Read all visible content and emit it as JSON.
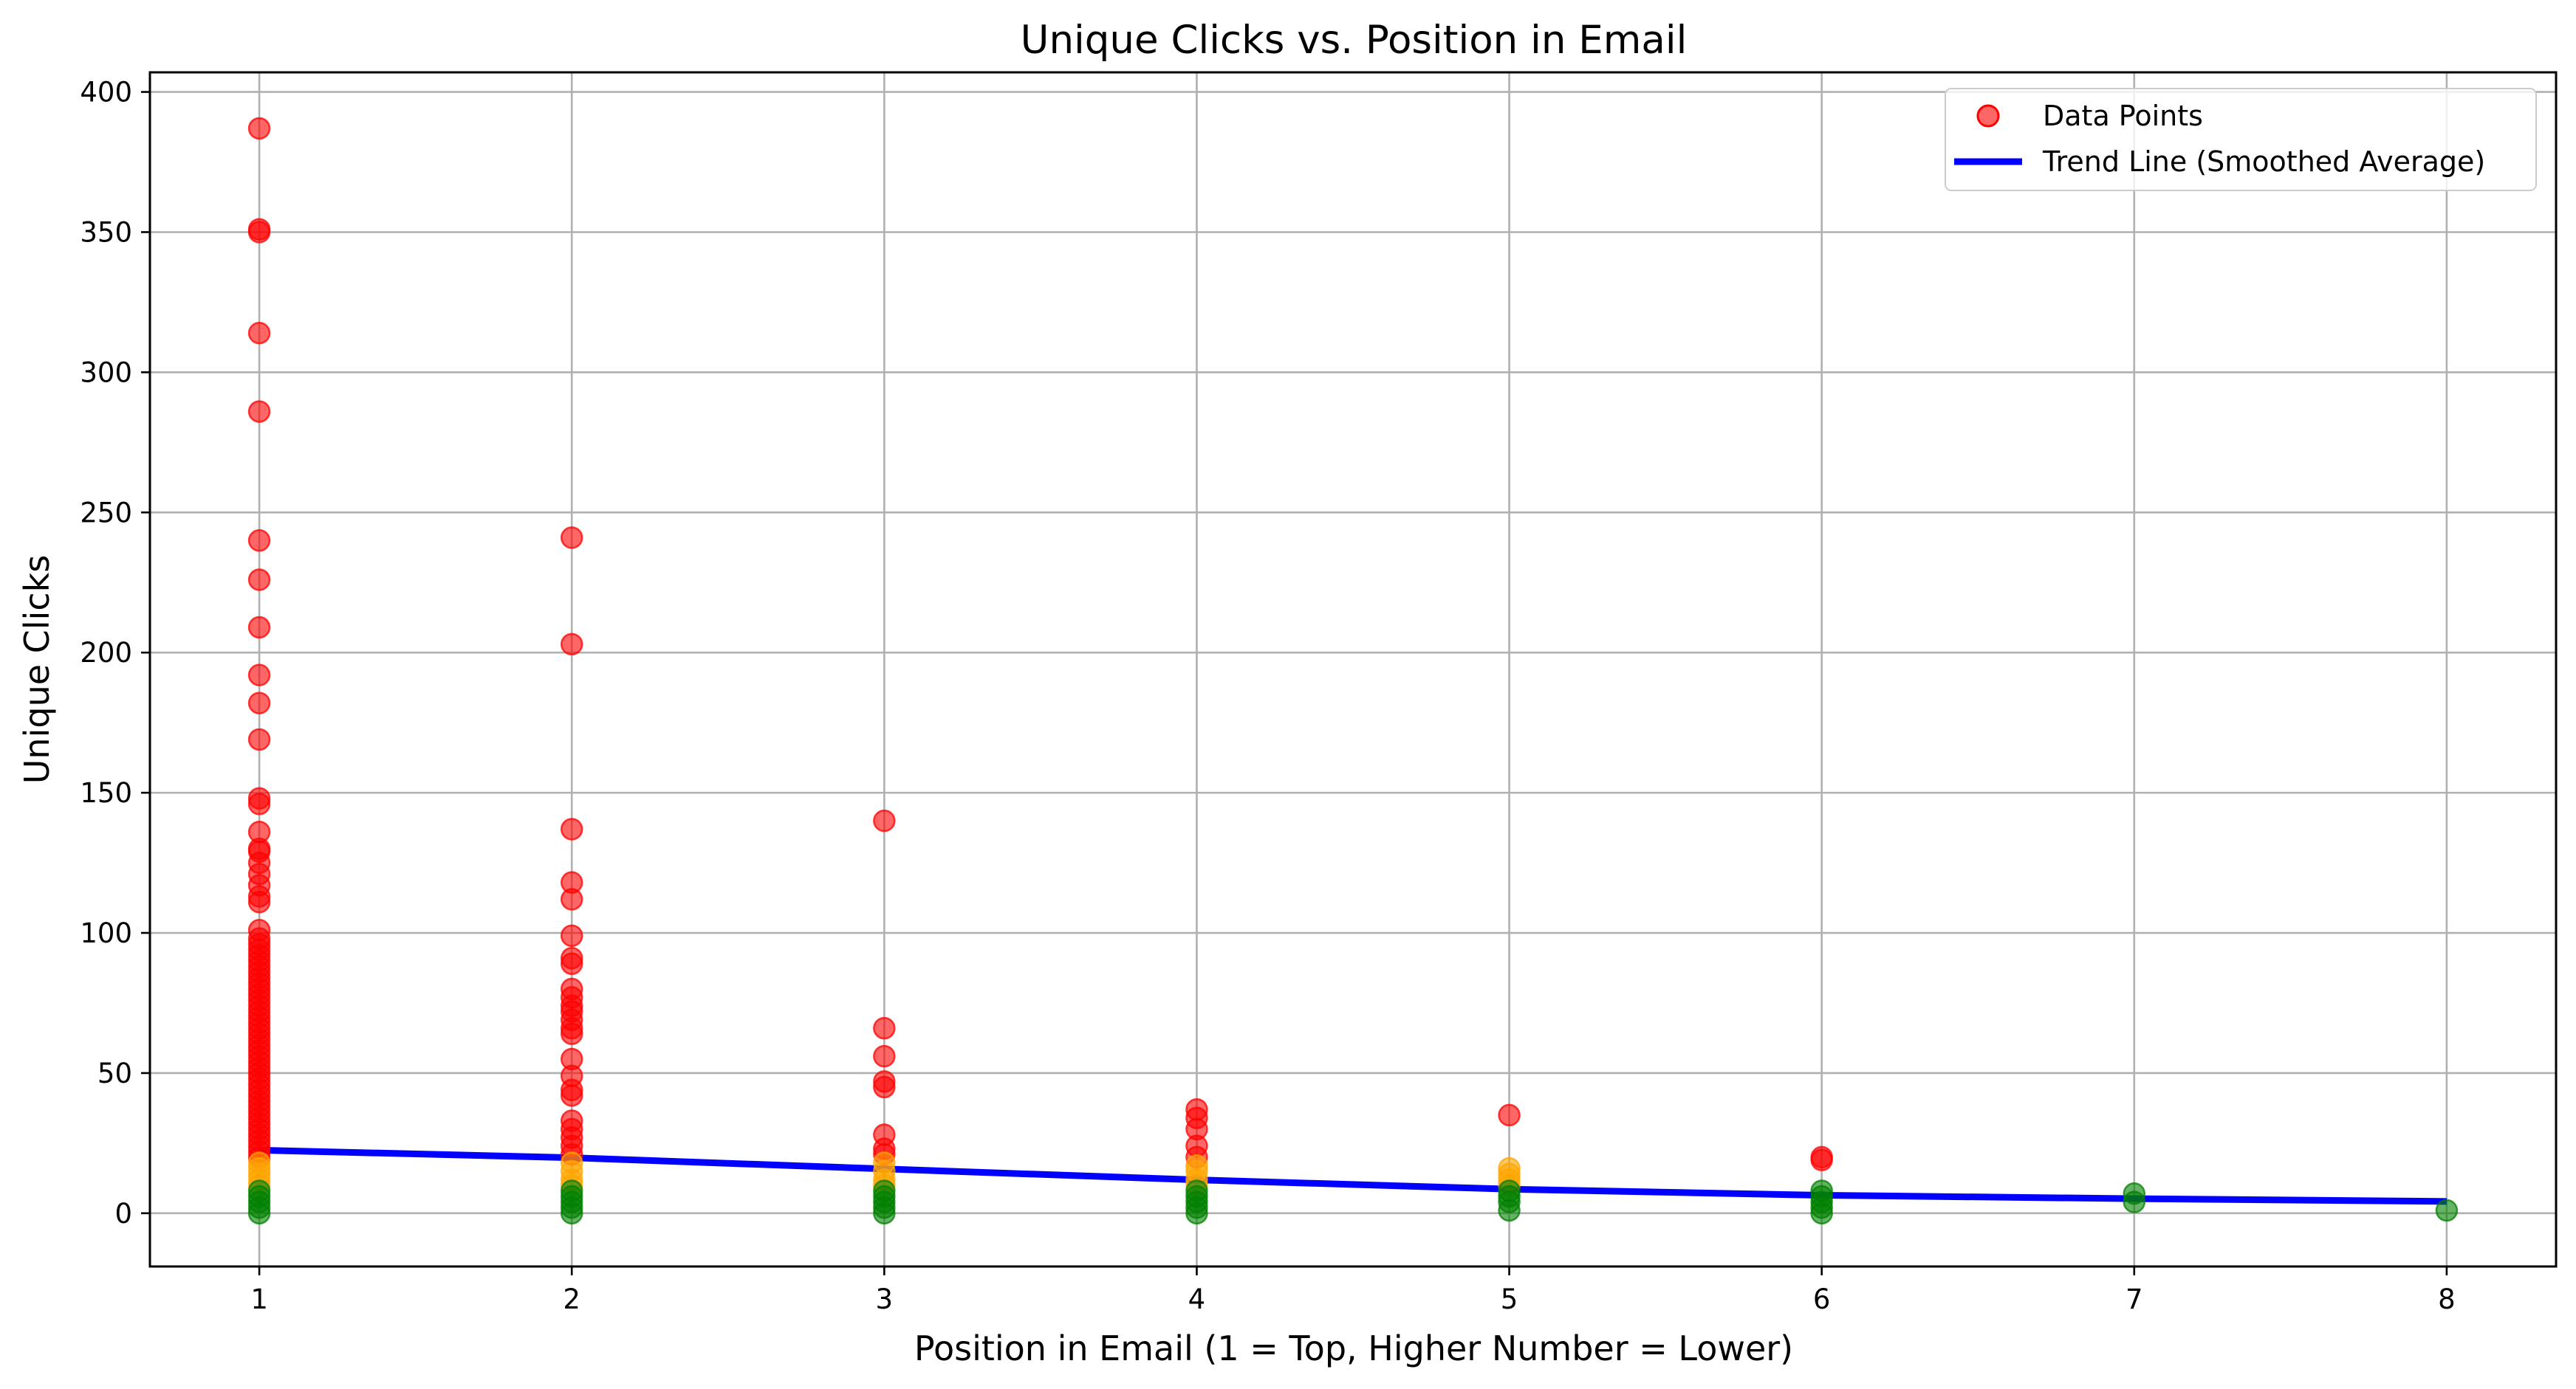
{
  "chart_data": {
    "type": "scatter",
    "title": "Unique Clicks vs. Position in Email",
    "xlabel": "Position in Email (1 = Top, Higher Number = Lower)",
    "ylabel": "Unique Clicks",
    "xlim": [
      0.65,
      8.35
    ],
    "ylim": [
      -19,
      407
    ],
    "x_ticks": [
      "1",
      "2",
      "3",
      "4",
      "5",
      "6",
      "7",
      "8"
    ],
    "y_ticks": [
      "0",
      "50",
      "100",
      "150",
      "200",
      "250",
      "300",
      "350",
      "400"
    ],
    "grid": true,
    "legend_position": "top-right",
    "legend": [
      {
        "label": "Data Points",
        "kind": "marker",
        "color": "#f0484a"
      },
      {
        "label": "Trend Line (Smoothed Average)",
        "kind": "line",
        "color": "#0000ff"
      }
    ],
    "category_colors": {
      "high": "#ff0000",
      "medium": "#ffa500",
      "low": "#008000"
    },
    "series": [
      {
        "kind": "points",
        "color_by": "category",
        "points": [
          [
            1,
            387,
            "high"
          ],
          [
            1,
            351,
            "high"
          ],
          [
            1,
            350,
            "high"
          ],
          [
            1,
            314,
            "high"
          ],
          [
            1,
            286,
            "high"
          ],
          [
            1,
            240,
            "high"
          ],
          [
            1,
            226,
            "high"
          ],
          [
            1,
            209,
            "high"
          ],
          [
            1,
            192,
            "high"
          ],
          [
            1,
            182,
            "high"
          ],
          [
            1,
            169,
            "high"
          ],
          [
            1,
            148,
            "high"
          ],
          [
            1,
            146,
            "high"
          ],
          [
            1,
            136,
            "high"
          ],
          [
            1,
            130,
            "high"
          ],
          [
            1,
            129,
            "high"
          ],
          [
            1,
            125,
            "high"
          ],
          [
            1,
            121,
            "high"
          ],
          [
            1,
            117,
            "high"
          ],
          [
            1,
            113,
            "high"
          ],
          [
            1,
            111,
            "high"
          ],
          [
            1,
            101,
            "high"
          ],
          [
            1,
            98,
            "high"
          ],
          [
            1,
            96,
            "high"
          ],
          [
            1,
            94,
            "high"
          ],
          [
            1,
            92,
            "high"
          ],
          [
            1,
            90,
            "high"
          ],
          [
            1,
            88,
            "high"
          ],
          [
            1,
            86,
            "high"
          ],
          [
            1,
            84,
            "high"
          ],
          [
            1,
            82,
            "high"
          ],
          [
            1,
            80,
            "high"
          ],
          [
            1,
            78,
            "high"
          ],
          [
            1,
            76,
            "high"
          ],
          [
            1,
            74,
            "high"
          ],
          [
            1,
            72,
            "high"
          ],
          [
            1,
            70,
            "high"
          ],
          [
            1,
            68,
            "high"
          ],
          [
            1,
            66,
            "high"
          ],
          [
            1,
            64,
            "high"
          ],
          [
            1,
            62,
            "high"
          ],
          [
            1,
            60,
            "high"
          ],
          [
            1,
            58,
            "high"
          ],
          [
            1,
            56,
            "high"
          ],
          [
            1,
            54,
            "high"
          ],
          [
            1,
            52,
            "high"
          ],
          [
            1,
            50,
            "high"
          ],
          [
            1,
            48,
            "high"
          ],
          [
            1,
            46,
            "high"
          ],
          [
            1,
            44,
            "high"
          ],
          [
            1,
            42,
            "high"
          ],
          [
            1,
            40,
            "high"
          ],
          [
            1,
            38,
            "high"
          ],
          [
            1,
            36,
            "high"
          ],
          [
            1,
            34,
            "high"
          ],
          [
            1,
            32,
            "high"
          ],
          [
            1,
            30,
            "high"
          ],
          [
            1,
            28,
            "high"
          ],
          [
            1,
            26,
            "high"
          ],
          [
            1,
            24,
            "high"
          ],
          [
            1,
            22,
            "high"
          ],
          [
            1,
            20,
            "high"
          ],
          [
            1,
            18,
            "medium"
          ],
          [
            1,
            16,
            "medium"
          ],
          [
            1,
            14,
            "medium"
          ],
          [
            1,
            12,
            "medium"
          ],
          [
            1,
            10,
            "medium"
          ],
          [
            1,
            8,
            "low"
          ],
          [
            1,
            6,
            "low"
          ],
          [
            1,
            4,
            "low"
          ],
          [
            1,
            2,
            "low"
          ],
          [
            1,
            0,
            "low"
          ],
          [
            2,
            241,
            "high"
          ],
          [
            2,
            203,
            "high"
          ],
          [
            2,
            137,
            "high"
          ],
          [
            2,
            118,
            "high"
          ],
          [
            2,
            112,
            "high"
          ],
          [
            2,
            99,
            "high"
          ],
          [
            2,
            91,
            "high"
          ],
          [
            2,
            89,
            "high"
          ],
          [
            2,
            80,
            "high"
          ],
          [
            2,
            77,
            "high"
          ],
          [
            2,
            74,
            "high"
          ],
          [
            2,
            72,
            "high"
          ],
          [
            2,
            69,
            "high"
          ],
          [
            2,
            66,
            "high"
          ],
          [
            2,
            64,
            "high"
          ],
          [
            2,
            55,
            "high"
          ],
          [
            2,
            49,
            "high"
          ],
          [
            2,
            44,
            "high"
          ],
          [
            2,
            42,
            "high"
          ],
          [
            2,
            33,
            "high"
          ],
          [
            2,
            30,
            "high"
          ],
          [
            2,
            27,
            "high"
          ],
          [
            2,
            24,
            "high"
          ],
          [
            2,
            21,
            "high"
          ],
          [
            2,
            18,
            "medium"
          ],
          [
            2,
            15,
            "medium"
          ],
          [
            2,
            12,
            "medium"
          ],
          [
            2,
            10,
            "medium"
          ],
          [
            2,
            8,
            "low"
          ],
          [
            2,
            6,
            "low"
          ],
          [
            2,
            4,
            "low"
          ],
          [
            2,
            2,
            "low"
          ],
          [
            2,
            0,
            "low"
          ],
          [
            3,
            140,
            "high"
          ],
          [
            3,
            66,
            "high"
          ],
          [
            3,
            56,
            "high"
          ],
          [
            3,
            47,
            "high"
          ],
          [
            3,
            45,
            "high"
          ],
          [
            3,
            28,
            "high"
          ],
          [
            3,
            23,
            "high"
          ],
          [
            3,
            21,
            "high"
          ],
          [
            3,
            18,
            "medium"
          ],
          [
            3,
            15,
            "medium"
          ],
          [
            3,
            12,
            "medium"
          ],
          [
            3,
            10,
            "medium"
          ],
          [
            3,
            8,
            "low"
          ],
          [
            3,
            6,
            "low"
          ],
          [
            3,
            4,
            "low"
          ],
          [
            3,
            2,
            "low"
          ],
          [
            3,
            0,
            "low"
          ],
          [
            4,
            37,
            "high"
          ],
          [
            4,
            34,
            "high"
          ],
          [
            4,
            30,
            "high"
          ],
          [
            4,
            24,
            "high"
          ],
          [
            4,
            20,
            "high"
          ],
          [
            4,
            17,
            "medium"
          ],
          [
            4,
            15,
            "medium"
          ],
          [
            4,
            12,
            "medium"
          ],
          [
            4,
            10,
            "medium"
          ],
          [
            4,
            8,
            "low"
          ],
          [
            4,
            6,
            "low"
          ],
          [
            4,
            4,
            "low"
          ],
          [
            4,
            2,
            "low"
          ],
          [
            4,
            0,
            "low"
          ],
          [
            5,
            35,
            "high"
          ],
          [
            5,
            16,
            "medium"
          ],
          [
            5,
            14,
            "medium"
          ],
          [
            5,
            12,
            "medium"
          ],
          [
            5,
            10,
            "medium"
          ],
          [
            5,
            8,
            "low"
          ],
          [
            5,
            6,
            "low"
          ],
          [
            5,
            4,
            "low"
          ],
          [
            5,
            1,
            "low"
          ],
          [
            6,
            20,
            "high"
          ],
          [
            6,
            19,
            "high"
          ],
          [
            6,
            8,
            "low"
          ],
          [
            6,
            6,
            "low"
          ],
          [
            6,
            4,
            "low"
          ],
          [
            6,
            2,
            "low"
          ],
          [
            6,
            0,
            "low"
          ],
          [
            7,
            7,
            "low"
          ],
          [
            7,
            4,
            "low"
          ],
          [
            8,
            1,
            "low"
          ]
        ]
      },
      {
        "name": "Trend Line (Smoothed Average)",
        "kind": "line",
        "color": "#0000ff",
        "x": [
          1,
          2,
          3,
          4,
          5,
          6,
          7,
          8
        ],
        "y": [
          22.5,
          19.8,
          15.8,
          11.9,
          8.6,
          6.4,
          5.2,
          4.2
        ]
      }
    ]
  }
}
